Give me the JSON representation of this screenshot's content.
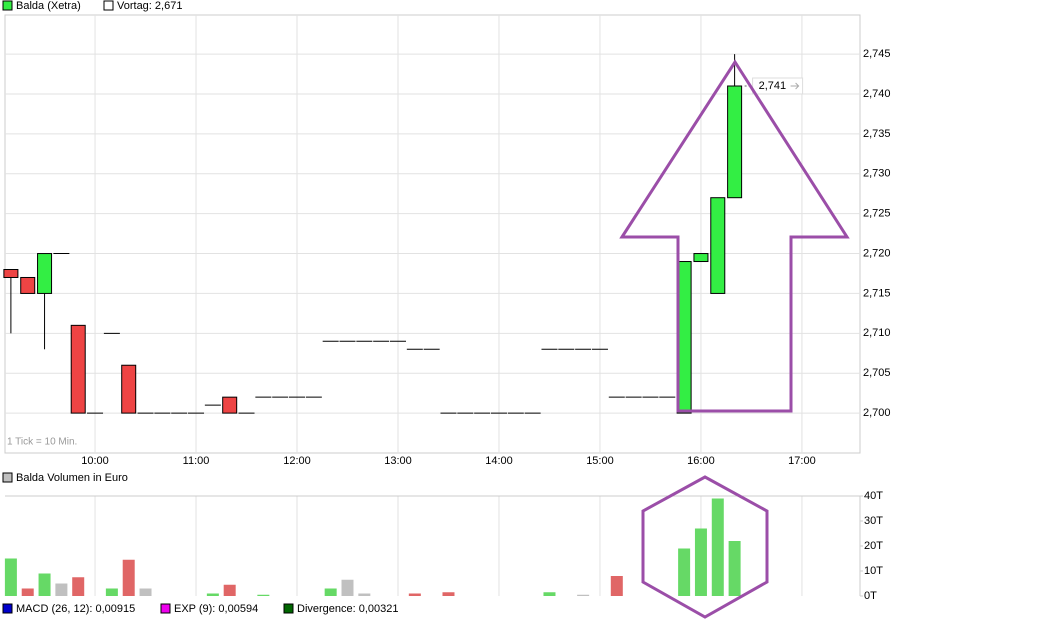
{
  "chart_data": [
    {
      "type": "candlestick",
      "name": "Balda (Xetra)",
      "reference_label": "Vortag: 2,671",
      "tick_note": "1 Tick = 10 Min.",
      "up_color": "#33ee44",
      "down_color": "#ee4444",
      "grid": true,
      "x": [
        550,
        560,
        570,
        580,
        590,
        600,
        610,
        620,
        630,
        640,
        650,
        660,
        670,
        680,
        690,
        700,
        710,
        720,
        730,
        740,
        750,
        760,
        770,
        780,
        790,
        800,
        810,
        820,
        830,
        840,
        850,
        860,
        870,
        880,
        890,
        900,
        910,
        920,
        930,
        940,
        950,
        960,
        970,
        980
      ],
      "open": [
        2.718,
        2.717,
        2.715,
        2.72,
        2.711,
        2.7,
        2.71,
        2.706,
        2.7,
        2.7,
        2.7,
        2.7,
        2.701,
        2.702,
        2.7,
        2.702,
        2.702,
        2.702,
        2.702,
        2.709,
        2.709,
        2.709,
        2.709,
        2.709,
        2.708,
        2.708,
        2.7,
        2.7,
        2.7,
        2.7,
        2.7,
        2.7,
        2.708,
        2.708,
        2.708,
        2.708,
        2.702,
        2.702,
        2.702,
        2.702,
        2.7,
        2.719,
        2.715,
        2.727
      ],
      "high": [
        2.718,
        2.717,
        2.72,
        2.72,
        2.711,
        2.7,
        2.71,
        2.706,
        2.7,
        2.7,
        2.7,
        2.7,
        2.701,
        2.702,
        2.7,
        2.702,
        2.702,
        2.702,
        2.702,
        2.709,
        2.709,
        2.709,
        2.709,
        2.709,
        2.708,
        2.708,
        2.7,
        2.7,
        2.7,
        2.7,
        2.7,
        2.7,
        2.708,
        2.708,
        2.708,
        2.708,
        2.702,
        2.702,
        2.702,
        2.702,
        2.719,
        2.72,
        2.727,
        2.745
      ],
      "low": [
        2.71,
        2.715,
        2.708,
        2.72,
        2.7,
        2.7,
        2.71,
        2.7,
        2.7,
        2.7,
        2.7,
        2.7,
        2.701,
        2.7,
        2.7,
        2.702,
        2.702,
        2.702,
        2.702,
        2.709,
        2.709,
        2.709,
        2.709,
        2.709,
        2.708,
        2.708,
        2.7,
        2.7,
        2.7,
        2.7,
        2.7,
        2.7,
        2.708,
        2.708,
        2.708,
        2.708,
        2.702,
        2.702,
        2.702,
        2.702,
        2.7,
        2.719,
        2.715,
        2.727
      ],
      "close": [
        2.717,
        2.715,
        2.72,
        2.72,
        2.7,
        2.7,
        2.71,
        2.7,
        2.7,
        2.7,
        2.7,
        2.7,
        2.701,
        2.7,
        2.7,
        2.702,
        2.702,
        2.702,
        2.702,
        2.709,
        2.709,
        2.709,
        2.709,
        2.709,
        2.708,
        2.708,
        2.7,
        2.7,
        2.7,
        2.7,
        2.7,
        2.7,
        2.708,
        2.708,
        2.708,
        2.708,
        2.702,
        2.702,
        2.702,
        2.702,
        2.719,
        2.72,
        2.727,
        2.741
      ],
      "last_label": "2,741",
      "xlim": [
        546.5,
        1054.5
      ],
      "xticks": [
        {
          "value": 600,
          "label": "10:00"
        },
        {
          "value": 660,
          "label": "11:00"
        },
        {
          "value": 720,
          "label": "12:00"
        },
        {
          "value": 780,
          "label": "13:00"
        },
        {
          "value": 840,
          "label": "14:00"
        },
        {
          "value": 900,
          "label": "15:00"
        },
        {
          "value": 960,
          "label": "16:00"
        },
        {
          "value": 1020,
          "label": "17:00"
        }
      ],
      "ylim": [
        2.695,
        2.7499
      ],
      "yticks": [
        {
          "value": 2.7,
          "label": "2,700"
        },
        {
          "value": 2.705,
          "label": "2,705"
        },
        {
          "value": 2.71,
          "label": "2,710"
        },
        {
          "value": 2.715,
          "label": "2,715"
        },
        {
          "value": 2.72,
          "label": "2,720"
        },
        {
          "value": 2.725,
          "label": "2,725"
        },
        {
          "value": 2.73,
          "label": "2,730"
        },
        {
          "value": 2.735,
          "label": "2,735"
        },
        {
          "value": 2.74,
          "label": "2,740"
        },
        {
          "value": 2.745,
          "label": "2,745"
        }
      ]
    },
    {
      "type": "bar",
      "title": "Balda Volumen in Euro",
      "legend_color": "#c0c0c0",
      "x": [
        550,
        560,
        570,
        580,
        590,
        600,
        610,
        620,
        630,
        640,
        650,
        660,
        670,
        680,
        690,
        700,
        710,
        720,
        730,
        740,
        750,
        760,
        770,
        780,
        790,
        800,
        810,
        820,
        830,
        840,
        850,
        860,
        870,
        880,
        890,
        900,
        910,
        920,
        930,
        940,
        950,
        960,
        970,
        980
      ],
      "values": [
        15,
        3,
        9,
        5,
        7.5,
        0,
        3,
        14.5,
        3,
        0,
        0,
        0,
        1,
        4.5,
        0,
        0.5,
        0,
        0,
        0,
        3,
        6.5,
        1,
        0,
        0,
        1,
        0,
        1.5,
        0,
        0,
        0,
        0,
        0,
        1.5,
        0,
        0.5,
        0,
        8,
        0,
        0,
        0,
        19,
        27,
        39,
        22
      ],
      "colors": [
        "#66d966",
        "#e06666",
        "#66d966",
        "#c0c0c0",
        "#e06666",
        "#c0c0c0",
        "#66d966",
        "#e06666",
        "#c0c0c0",
        "#c0c0c0",
        "#c0c0c0",
        "#c0c0c0",
        "#66d966",
        "#e06666",
        "#c0c0c0",
        "#66d966",
        "#c0c0c0",
        "#c0c0c0",
        "#c0c0c0",
        "#66d966",
        "#c0c0c0",
        "#c0c0c0",
        "#c0c0c0",
        "#c0c0c0",
        "#e06666",
        "#c0c0c0",
        "#e06666",
        "#c0c0c0",
        "#c0c0c0",
        "#c0c0c0",
        "#c0c0c0",
        "#c0c0c0",
        "#66d966",
        "#c0c0c0",
        "#c0c0c0",
        "#c0c0c0",
        "#e06666",
        "#c0c0c0",
        "#c0c0c0",
        "#c0c0c0",
        "#66d966",
        "#66d966",
        "#66d966",
        "#66d966"
      ],
      "xlim": [
        546.5,
        1054.5
      ],
      "ylim": [
        0,
        40
      ],
      "yticks": [
        {
          "value": 0,
          "label": "0T"
        },
        {
          "value": 10,
          "label": "10T"
        },
        {
          "value": 20,
          "label": "20T"
        },
        {
          "value": 30,
          "label": "30T"
        },
        {
          "value": 40,
          "label": "40T"
        }
      ]
    }
  ],
  "footer": [
    {
      "label": "MACD (26, 12): 0,00915",
      "color": "#0000cc"
    },
    {
      "label": "EXP (9): 0,00594",
      "color": "#ee00ee"
    },
    {
      "label": "Divergence: 0,00321",
      "color": "#006600"
    }
  ]
}
